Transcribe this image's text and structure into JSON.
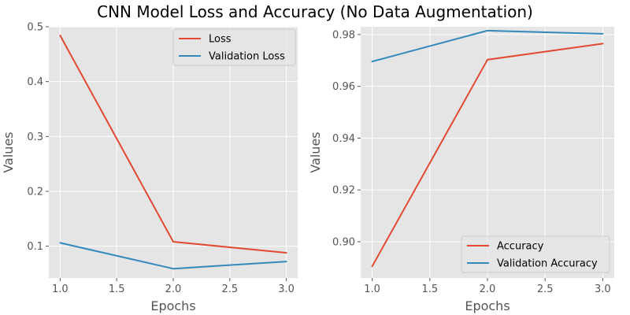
{
  "suptitle": "CNN Model Loss and Accuracy (No Data Augmentation)",
  "colors": {
    "series_1": "#E24A33",
    "series_2": "#348ABD",
    "axes_bg": "#E5E5E5",
    "grid": "#FFFFFF",
    "tick_text": "#555555"
  },
  "chart_data": [
    {
      "type": "line",
      "xlabel": "Epochs",
      "ylabel": "Values",
      "xlim": [
        0.9,
        3.1
      ],
      "ylim": [
        0.042,
        0.5
      ],
      "x_ticks": [
        "1.0",
        "1.5",
        "2.0",
        "2.5",
        "3.0"
      ],
      "y_ticks": [
        "0.1",
        "0.2",
        "0.3",
        "0.4",
        "0.5"
      ],
      "grid": true,
      "legend": "top-right",
      "x": [
        1.0,
        2.0,
        3.0
      ],
      "series": [
        {
          "name": "Loss",
          "values": [
            0.484,
            0.108,
            0.088
          ]
        },
        {
          "name": "Validation Loss",
          "values": [
            0.106,
            0.059,
            0.072
          ]
        }
      ]
    },
    {
      "type": "line",
      "xlabel": "Epochs",
      "ylabel": "Values",
      "xlim": [
        0.9,
        3.1
      ],
      "ylim": [
        0.886,
        0.983
      ],
      "x_ticks": [
        "1.0",
        "1.5",
        "2.0",
        "2.5",
        "3.0"
      ],
      "y_ticks": [
        "0.90",
        "0.92",
        "0.94",
        "0.96",
        "0.98"
      ],
      "grid": true,
      "legend": "bottom-right",
      "x": [
        1.0,
        2.0,
        3.0
      ],
      "series": [
        {
          "name": "Accuracy",
          "values": [
            0.8905,
            0.9703,
            0.9765
          ]
        },
        {
          "name": "Validation Accuracy",
          "values": [
            0.9696,
            0.9815,
            0.9803
          ]
        }
      ]
    }
  ]
}
